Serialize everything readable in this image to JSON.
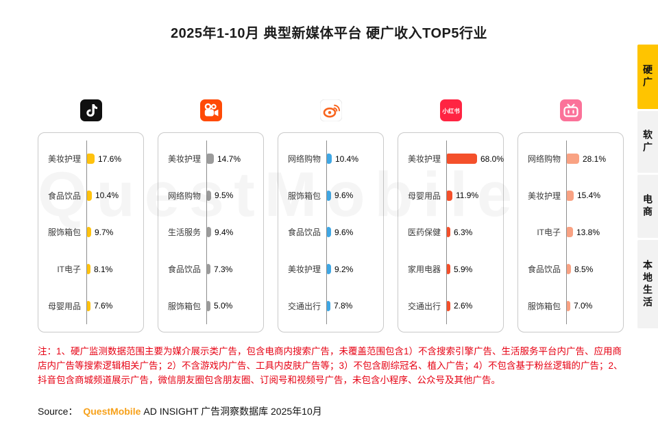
{
  "title": "2025年1-10月 典型新媒体平台 硬广收入TOP5行业",
  "watermark": "QuestMobile",
  "side_tabs": [
    {
      "key": "hard-ad",
      "label": "硬广",
      "active": true
    },
    {
      "key": "soft-ad",
      "label": "软广",
      "active": false
    },
    {
      "key": "ecommerce",
      "label": "电商",
      "active": false
    },
    {
      "key": "local-life",
      "label": "本地生活",
      "active": false
    }
  ],
  "chart_data": {
    "type": "bar",
    "orientation": "horizontal",
    "unit": "%",
    "title": "2025年1-10月 典型新媒体平台 硬广收入TOP5行业",
    "platforms": [
      {
        "key": "douyin",
        "name": "抖音",
        "bar_color": "#FFC20E",
        "categories": [
          "美妆护理",
          "食品饮品",
          "服饰箱包",
          "IT电子",
          "母婴用品"
        ],
        "values": [
          17.6,
          10.4,
          9.7,
          8.1,
          7.6
        ]
      },
      {
        "key": "kuaishou",
        "name": "快手",
        "bar_color": "#9B9B9B",
        "categories": [
          "美妆护理",
          "网络购物",
          "生活服务",
          "食品饮品",
          "服饰箱包"
        ],
        "values": [
          14.7,
          9.5,
          9.4,
          7.3,
          5.0
        ]
      },
      {
        "key": "weibo",
        "name": "微博",
        "bar_color": "#3FA7E5",
        "categories": [
          "网络购物",
          "服饰箱包",
          "食品饮品",
          "美妆护理",
          "交通出行"
        ],
        "values": [
          10.4,
          9.6,
          9.6,
          9.2,
          7.8
        ]
      },
      {
        "key": "xiaohongshu",
        "name": "小红书",
        "bar_color": "#F4502B",
        "categories": [
          "美妆护理",
          "母婴用品",
          "医药保健",
          "家用电器",
          "交通出行"
        ],
        "values": [
          68.0,
          11.9,
          6.3,
          5.9,
          2.6
        ]
      },
      {
        "key": "bilibili",
        "name": "哔哩哔哩",
        "bar_color": "#F9A283",
        "categories": [
          "网络购物",
          "美妆护理",
          "IT电子",
          "食品饮品",
          "服饰箱包"
        ],
        "values": [
          28.1,
          15.4,
          13.8,
          8.5,
          7.0
        ]
      }
    ]
  },
  "notes": {
    "text": "注：1、硬广监测数据范围主要为媒介展示类广告，包含电商内搜索广告，未覆盖范围包含1）不含搜索引擎广告、生活服务平台内广告、应用商店内广告等搜索逻辑相关广告；2）不含游戏内广告、工具内皮肤广告等；3）不包含剧综冠名、植入广告；4）不包含基于粉丝逻辑的广告；2、抖音包含商城频道展示广告，微信朋友圈包含朋友圈、订阅号和视频号广告，未包含小程序、公众号及其他广告。"
  },
  "source": {
    "prefix": "Source：",
    "brand": "QuestMobile",
    "suffix": "AD INSIGHT 广告洞察数据库 2025年10月"
  }
}
